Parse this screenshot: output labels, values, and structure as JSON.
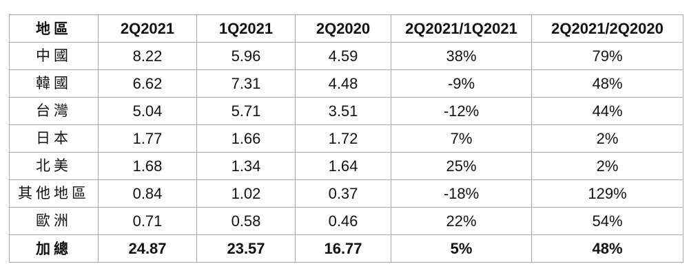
{
  "table": {
    "headers": [
      "地區",
      "2Q2021",
      "1Q2021",
      "2Q2020",
      "2Q2021/1Q2021",
      "2Q2021/2Q2020"
    ],
    "rows": [
      [
        "中國",
        "8.22",
        "5.96",
        "4.59",
        "38%",
        "79%"
      ],
      [
        "韓國",
        "6.62",
        "7.31",
        "4.48",
        "-9%",
        "48%"
      ],
      [
        "台灣",
        "5.04",
        "5.71",
        "3.51",
        "-12%",
        "44%"
      ],
      [
        "日本",
        "1.77",
        "1.66",
        "1.72",
        "7%",
        "2%"
      ],
      [
        "北美",
        "1.68",
        "1.34",
        "1.64",
        "25%",
        "2%"
      ],
      [
        "其他地區",
        "0.84",
        "1.02",
        "0.37",
        "-18%",
        "129%"
      ],
      [
        "歐洲",
        "0.71",
        "0.58",
        "0.46",
        "22%",
        "54%"
      ]
    ],
    "total": [
      "加總",
      "24.87",
      "23.57",
      "16.77",
      "5%",
      "48%"
    ]
  }
}
